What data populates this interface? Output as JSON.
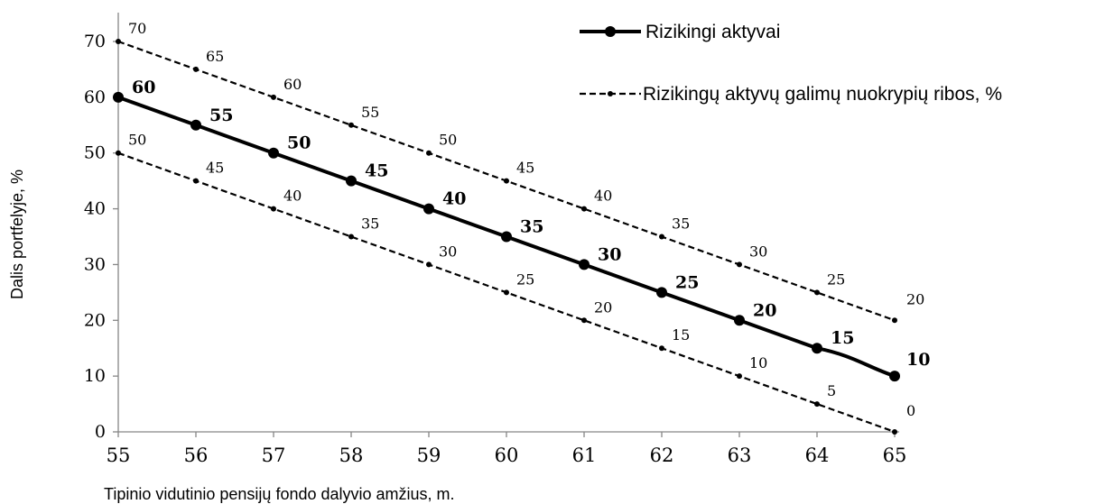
{
  "chart_data": {
    "type": "line",
    "title": "",
    "xlabel": "Tipinio vidutinio pensijų fondo dalyvio amžius, m.",
    "ylabel": "Dalis portfelyje, %",
    "x": [
      55,
      56,
      57,
      58,
      59,
      60,
      61,
      62,
      63,
      64,
      65
    ],
    "x_tick_labels": [
      "55",
      "56",
      "57",
      "58",
      "59",
      "60",
      "61",
      "62",
      "63",
      "64",
      "65"
    ],
    "y_tick_labels": [
      "0",
      "10",
      "20",
      "30",
      "40",
      "50",
      "60",
      "70"
    ],
    "xlim": [
      55,
      65
    ],
    "ylim": [
      0,
      70
    ],
    "grid": false,
    "legend_position": "top-right",
    "legend": [
      "Rizikingi aktyvai",
      "Rizikingų aktyvų galimų nuokrypių ribos, %"
    ],
    "series": [
      {
        "name": "Rizikingi aktyvai",
        "style": "solid-marker",
        "values": [
          60,
          55,
          50,
          45,
          40,
          35,
          30,
          25,
          20,
          15,
          10
        ],
        "labels": [
          "60",
          "55",
          "50",
          "45",
          "40",
          "35",
          "30",
          "25",
          "20",
          "15",
          "10"
        ]
      },
      {
        "name": "Rizikingų aktyvų galimų nuokrypių ribos, %",
        "style": "dashed-upper",
        "values": [
          70,
          65,
          60,
          55,
          50,
          45,
          40,
          35,
          30,
          25,
          20
        ],
        "labels": [
          "70",
          "65",
          "60",
          "55",
          "50",
          "45",
          "40",
          "35",
          "30",
          "25",
          "20"
        ]
      },
      {
        "name": "Rizikingų aktyvų galimų nuokrypių ribos, %",
        "style": "dashed-lower",
        "values": [
          50,
          45,
          40,
          35,
          30,
          25,
          20,
          15,
          10,
          5,
          0
        ],
        "labels": [
          "50",
          "45",
          "40",
          "35",
          "30",
          "25",
          "20",
          "15",
          "10",
          "5",
          "0"
        ]
      }
    ],
    "colors": {
      "line": "#000000"
    }
  }
}
